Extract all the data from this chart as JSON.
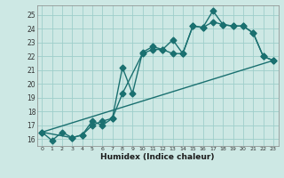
{
  "title": "",
  "xlabel": "Humidex (Indice chaleur)",
  "background_color": "#cde8e4",
  "grid_color": "#9ececa",
  "line_color": "#1a7070",
  "spine_color": "#888888",
  "xlim": [
    -0.5,
    23.5
  ],
  "ylim": [
    15.5,
    25.7
  ],
  "yticks": [
    16,
    17,
    18,
    19,
    20,
    21,
    22,
    23,
    24,
    25
  ],
  "xticks": [
    0,
    1,
    2,
    3,
    4,
    5,
    6,
    7,
    8,
    9,
    10,
    11,
    12,
    13,
    14,
    15,
    16,
    17,
    18,
    19,
    20,
    21,
    22,
    23
  ],
  "line1_x": [
    0,
    1,
    2,
    3,
    4,
    5,
    6,
    7,
    8,
    9,
    10,
    11,
    12,
    13,
    14,
    15,
    16,
    17,
    18,
    19,
    20,
    21,
    22,
    23
  ],
  "line1_y": [
    16.5,
    15.9,
    16.5,
    16.1,
    16.3,
    17.3,
    17.0,
    17.5,
    21.2,
    19.3,
    22.3,
    22.7,
    22.5,
    23.2,
    22.2,
    24.2,
    24.1,
    25.3,
    24.3,
    24.2,
    24.2,
    23.7,
    22.0,
    21.7
  ],
  "line2_x": [
    0,
    3,
    4,
    5,
    6,
    7,
    8,
    10,
    11,
    12,
    13,
    14,
    15,
    16,
    17,
    18,
    19,
    20,
    21,
    22,
    23
  ],
  "line2_y": [
    16.5,
    16.1,
    16.3,
    17.0,
    17.3,
    17.5,
    19.3,
    22.2,
    22.5,
    22.5,
    22.2,
    22.2,
    24.2,
    24.1,
    24.5,
    24.3,
    24.2,
    24.2,
    23.7,
    22.0,
    21.7
  ],
  "line3_x": [
    0,
    23
  ],
  "line3_y": [
    16.5,
    21.7
  ]
}
